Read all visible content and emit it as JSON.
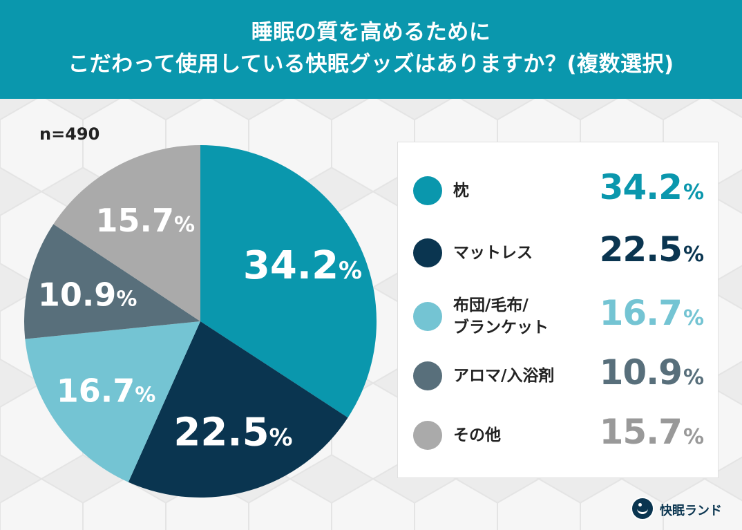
{
  "header": {
    "title_line1": "睡眠の質を高めるために",
    "title_line2": "こだわって使用している快眠グッズはありますか？(複数選択)"
  },
  "sample_size": "n=490",
  "brand": {
    "name": "快眠ランド",
    "logo_icon": "sleeping-person-logo-icon"
  },
  "colors": {
    "header_bg": "#0a97ad",
    "pillow": "#0a97ad",
    "mattress": "#0a3550",
    "futon": "#74c4d3",
    "aroma": "#586f7b",
    "other": "#aaaaaa"
  },
  "chart_data": {
    "type": "pie",
    "title": "睡眠の質を高めるために こだわって使用している快眠グッズはありますか？(複数選択)",
    "n": 490,
    "unit": "%",
    "start_angle_deg": 0,
    "direction": "clockwise",
    "legend_placement": "right",
    "slices": [
      {
        "label": "枕",
        "value": 34.2,
        "value_text": "34.2",
        "color": "#0a97ad",
        "text_color": "#0a97ad"
      },
      {
        "label": "マットレス",
        "value": 22.5,
        "value_text": "22.5",
        "color": "#0a3550",
        "text_color": "#0a3550"
      },
      {
        "label": "布団/毛布/\nブランケット",
        "value": 16.7,
        "value_text": "16.7",
        "color": "#74c4d3",
        "text_color": "#74c4d3"
      },
      {
        "label": "アロマ/入浴剤",
        "value": 10.9,
        "value_text": "10.9",
        "color": "#586f7b",
        "text_color": "#586f7b"
      },
      {
        "label": "その他",
        "value": 15.7,
        "value_text": "15.7",
        "color": "#aaaaaa",
        "text_color": "#999999"
      }
    ]
  }
}
